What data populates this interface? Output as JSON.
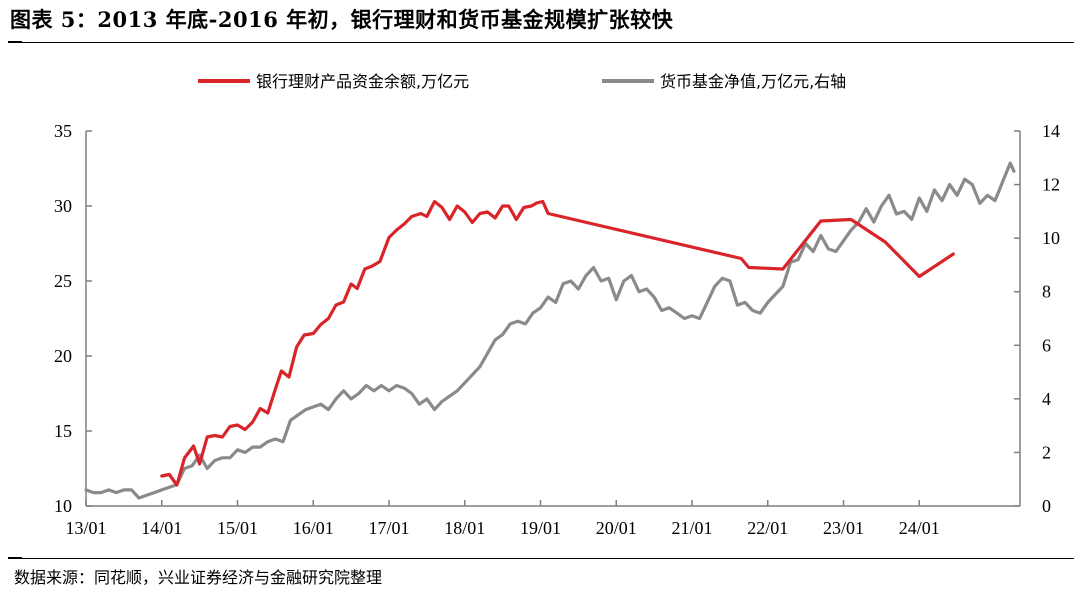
{
  "title": "图表 5：2013 年底-2016 年初，银行理财和货币基金规模扩张较快",
  "source": "数据来源：同花顺，兴业证券经济与金融研究院整理",
  "chart_data": {
    "type": "line",
    "title": "图表 5：2013 年底-2016 年初，银行理财和货币基金规模扩张较快",
    "xlabel": "",
    "ylabel": "",
    "x_ticks": [
      "13/01",
      "14/01",
      "15/01",
      "16/01",
      "17/01",
      "18/01",
      "19/01",
      "20/01",
      "21/01",
      "22/01",
      "23/01",
      "24/01"
    ],
    "ylim_left": [
      10,
      35
    ],
    "yticks_left": [
      10,
      15,
      20,
      25,
      30,
      35
    ],
    "ylim_right": [
      0,
      14
    ],
    "yticks_right": [
      0,
      2,
      4,
      6,
      8,
      10,
      12,
      14
    ],
    "grid": false,
    "legend_position": "top",
    "colors": {
      "bank": "#d9252a",
      "mmf": "#8a8a8a",
      "axis": "#7f7f7f"
    },
    "series": [
      {
        "name": "银行理财产品资金余额,万亿元",
        "axis": "left",
        "points": [
          [
            2014.0,
            12.0
          ],
          [
            2014.1,
            12.1
          ],
          [
            2014.2,
            11.4
          ],
          [
            2014.3,
            13.2
          ],
          [
            2014.42,
            14.0
          ],
          [
            2014.5,
            12.8
          ],
          [
            2014.6,
            14.6
          ],
          [
            2014.7,
            14.7
          ],
          [
            2014.8,
            14.6
          ],
          [
            2014.9,
            15.3
          ],
          [
            2015.0,
            15.4
          ],
          [
            2015.1,
            15.1
          ],
          [
            2015.2,
            15.6
          ],
          [
            2015.3,
            16.5
          ],
          [
            2015.4,
            16.2
          ],
          [
            2015.5,
            17.8
          ],
          [
            2015.58,
            19.0
          ],
          [
            2015.68,
            18.6
          ],
          [
            2015.78,
            20.6
          ],
          [
            2015.88,
            21.4
          ],
          [
            2016.0,
            21.5
          ],
          [
            2016.1,
            22.1
          ],
          [
            2016.2,
            22.5
          ],
          [
            2016.3,
            23.4
          ],
          [
            2016.4,
            23.6
          ],
          [
            2016.5,
            24.8
          ],
          [
            2016.58,
            24.5
          ],
          [
            2016.68,
            25.8
          ],
          [
            2016.78,
            26.0
          ],
          [
            2016.88,
            26.3
          ],
          [
            2017.0,
            27.9
          ],
          [
            2017.1,
            28.4
          ],
          [
            2017.2,
            28.8
          ],
          [
            2017.3,
            29.3
          ],
          [
            2017.42,
            29.5
          ],
          [
            2017.5,
            29.3
          ],
          [
            2017.6,
            30.3
          ],
          [
            2017.7,
            29.9
          ],
          [
            2017.8,
            29.1
          ],
          [
            2017.9,
            30.0
          ],
          [
            2018.0,
            29.6
          ],
          [
            2018.1,
            28.9
          ],
          [
            2018.2,
            29.5
          ],
          [
            2018.3,
            29.6
          ],
          [
            2018.4,
            29.2
          ],
          [
            2018.5,
            30.0
          ],
          [
            2018.58,
            30.0
          ],
          [
            2018.68,
            29.1
          ],
          [
            2018.78,
            29.9
          ],
          [
            2018.88,
            30.0
          ],
          [
            2018.95,
            30.2
          ],
          [
            2019.03,
            30.3
          ],
          [
            2019.1,
            29.5
          ],
          [
            2021.65,
            26.5
          ],
          [
            2021.75,
            25.9
          ],
          [
            2022.2,
            25.8
          ],
          [
            2022.7,
            29.0
          ],
          [
            2023.1,
            29.1
          ],
          [
            2023.55,
            27.6
          ],
          [
            2024.0,
            25.3
          ],
          [
            2024.45,
            26.8
          ]
        ]
      },
      {
        "name": "货币基金净值,万亿元,右轴",
        "axis": "right",
        "points": [
          [
            2013.0,
            0.6
          ],
          [
            2013.1,
            0.5
          ],
          [
            2013.2,
            0.5
          ],
          [
            2013.3,
            0.6
          ],
          [
            2013.4,
            0.5
          ],
          [
            2013.5,
            0.6
          ],
          [
            2013.6,
            0.6
          ],
          [
            2013.7,
            0.3
          ],
          [
            2013.8,
            0.4
          ],
          [
            2013.9,
            0.5
          ],
          [
            2014.0,
            0.6
          ],
          [
            2014.1,
            0.7
          ],
          [
            2014.2,
            0.8
          ],
          [
            2014.3,
            1.4
          ],
          [
            2014.4,
            1.5
          ],
          [
            2014.5,
            1.9
          ],
          [
            2014.6,
            1.4
          ],
          [
            2014.7,
            1.7
          ],
          [
            2014.8,
            1.8
          ],
          [
            2014.9,
            1.8
          ],
          [
            2015.0,
            2.1
          ],
          [
            2015.1,
            2.0
          ],
          [
            2015.2,
            2.2
          ],
          [
            2015.3,
            2.2
          ],
          [
            2015.4,
            2.4
          ],
          [
            2015.5,
            2.5
          ],
          [
            2015.6,
            2.4
          ],
          [
            2015.7,
            3.2
          ],
          [
            2015.8,
            3.4
          ],
          [
            2015.9,
            3.6
          ],
          [
            2016.0,
            3.7
          ],
          [
            2016.1,
            3.8
          ],
          [
            2016.2,
            3.6
          ],
          [
            2016.3,
            4.0
          ],
          [
            2016.4,
            4.3
          ],
          [
            2016.5,
            4.0
          ],
          [
            2016.6,
            4.2
          ],
          [
            2016.7,
            4.5
          ],
          [
            2016.8,
            4.3
          ],
          [
            2016.9,
            4.5
          ],
          [
            2017.0,
            4.3
          ],
          [
            2017.1,
            4.5
          ],
          [
            2017.2,
            4.4
          ],
          [
            2017.3,
            4.2
          ],
          [
            2017.4,
            3.8
          ],
          [
            2017.5,
            4.0
          ],
          [
            2017.6,
            3.6
          ],
          [
            2017.7,
            3.9
          ],
          [
            2017.8,
            4.1
          ],
          [
            2017.9,
            4.3
          ],
          [
            2018.0,
            4.6
          ],
          [
            2018.1,
            4.9
          ],
          [
            2018.2,
            5.2
          ],
          [
            2018.3,
            5.7
          ],
          [
            2018.4,
            6.2
          ],
          [
            2018.5,
            6.4
          ],
          [
            2018.6,
            6.8
          ],
          [
            2018.7,
            6.9
          ],
          [
            2018.8,
            6.8
          ],
          [
            2018.9,
            7.2
          ],
          [
            2019.0,
            7.4
          ],
          [
            2019.1,
            7.8
          ],
          [
            2019.2,
            7.6
          ],
          [
            2019.3,
            8.3
          ],
          [
            2019.4,
            8.4
          ],
          [
            2019.5,
            8.1
          ],
          [
            2019.6,
            8.6
          ],
          [
            2019.7,
            8.9
          ],
          [
            2019.8,
            8.4
          ],
          [
            2019.9,
            8.5
          ],
          [
            2020.0,
            7.7
          ],
          [
            2020.1,
            8.4
          ],
          [
            2020.2,
            8.6
          ],
          [
            2020.3,
            8.0
          ],
          [
            2020.4,
            8.1
          ],
          [
            2020.5,
            7.8
          ],
          [
            2020.6,
            7.3
          ],
          [
            2020.7,
            7.4
          ],
          [
            2020.8,
            7.2
          ],
          [
            2020.9,
            7.0
          ],
          [
            2021.0,
            7.1
          ],
          [
            2021.1,
            7.0
          ],
          [
            2021.2,
            7.6
          ],
          [
            2021.3,
            8.2
          ],
          [
            2021.4,
            8.5
          ],
          [
            2021.5,
            8.4
          ],
          [
            2021.6,
            7.5
          ],
          [
            2021.7,
            7.6
          ],
          [
            2021.8,
            7.3
          ],
          [
            2021.9,
            7.2
          ],
          [
            2022.0,
            7.6
          ],
          [
            2022.1,
            7.9
          ],
          [
            2022.2,
            8.2
          ],
          [
            2022.3,
            9.1
          ],
          [
            2022.4,
            9.2
          ],
          [
            2022.5,
            9.8
          ],
          [
            2022.6,
            9.5
          ],
          [
            2022.7,
            10.1
          ],
          [
            2022.8,
            9.6
          ],
          [
            2022.9,
            9.5
          ],
          [
            2023.0,
            9.9
          ],
          [
            2023.1,
            10.3
          ],
          [
            2023.2,
            10.6
          ],
          [
            2023.3,
            11.1
          ],
          [
            2023.4,
            10.6
          ],
          [
            2023.5,
            11.2
          ],
          [
            2023.6,
            11.6
          ],
          [
            2023.7,
            10.9
          ],
          [
            2023.8,
            11.0
          ],
          [
            2023.9,
            10.7
          ],
          [
            2024.0,
            11.5
          ],
          [
            2024.1,
            11.0
          ],
          [
            2024.2,
            11.8
          ],
          [
            2024.3,
            11.4
          ],
          [
            2024.4,
            12.0
          ],
          [
            2024.5,
            11.6
          ],
          [
            2024.6,
            12.2
          ],
          [
            2024.7,
            12.0
          ],
          [
            2024.8,
            11.3
          ],
          [
            2024.9,
            11.6
          ],
          [
            2025.0,
            11.4
          ],
          [
            2025.1,
            12.1
          ],
          [
            2025.2,
            12.8
          ],
          [
            2025.25,
            12.5
          ]
        ]
      }
    ]
  }
}
